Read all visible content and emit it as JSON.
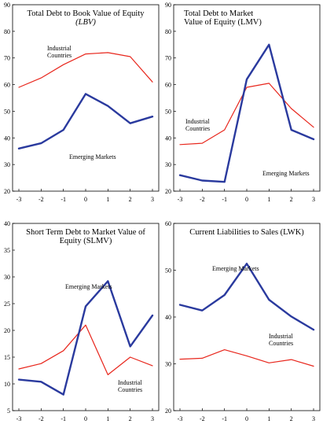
{
  "chart_data": [
    {
      "type": "line",
      "title_line1": "Total Debt to Book Value of Equity",
      "title_line2": "(LBV)",
      "title_line2_italic": true,
      "x": [
        -3,
        -2,
        -1,
        0,
        1,
        2,
        3
      ],
      "xlim": [
        -3,
        3
      ],
      "ylim": [
        20,
        90
      ],
      "yticks": [
        20,
        30,
        40,
        50,
        60,
        70,
        80,
        90
      ],
      "grid": false,
      "series": [
        {
          "name": "Industrial Countries",
          "label_lines": [
            "Industrial",
            "Countries"
          ],
          "color": "#e8261c",
          "width": 1.2,
          "values": [
            59,
            62.5,
            67.5,
            71.5,
            72,
            70.5,
            61
          ]
        },
        {
          "name": "Emerging Markets",
          "label_lines": [
            "Emerging Markets"
          ],
          "color": "#2a3a9e",
          "width": 2.4,
          "values": [
            36,
            38,
            43,
            56.5,
            52,
            45.5,
            48
          ]
        }
      ]
    },
    {
      "type": "line",
      "title_line1": "Total Debt to Market",
      "title_line2": "Value of Equity (LMV)",
      "x": [
        -3,
        -2,
        -1,
        0,
        1,
        2,
        3
      ],
      "xlim": [
        -3,
        3
      ],
      "ylim": [
        20,
        90
      ],
      "yticks": [
        20,
        30,
        40,
        50,
        60,
        70,
        80,
        90
      ],
      "grid": false,
      "series": [
        {
          "name": "Industrial Countries",
          "label_lines": [
            "Industrial",
            "Countries"
          ],
          "color": "#e8261c",
          "width": 1.2,
          "values": [
            37.5,
            38,
            43,
            59,
            60.5,
            51,
            44
          ]
        },
        {
          "name": "Emerging Markets",
          "label_lines": [
            "Emerging Markets"
          ],
          "color": "#2a3a9e",
          "width": 2.4,
          "values": [
            26,
            24,
            23.5,
            62,
            75,
            43,
            39.5
          ]
        }
      ]
    },
    {
      "type": "line",
      "title_line1": "Short Term Debt to Market Value of",
      "title_line2": "Equity (SLMV)",
      "x": [
        -3,
        -2,
        -1,
        0,
        1,
        2,
        3
      ],
      "xlim": [
        -3,
        3
      ],
      "ylim": [
        5,
        40
      ],
      "yticks": [
        5,
        10,
        15,
        20,
        25,
        30,
        35,
        40
      ],
      "grid": false,
      "series": [
        {
          "name": "Industrial Countries",
          "label_lines": [
            "Industrial",
            "Countries"
          ],
          "color": "#e8261c",
          "width": 1.2,
          "values": [
            12.8,
            13.8,
            16.2,
            21,
            11.7,
            15,
            13.4
          ]
        },
        {
          "name": "Emerging Markets",
          "label_lines": [
            "Emerging Markets"
          ],
          "color": "#2a3a9e",
          "width": 2.4,
          "values": [
            10.8,
            10.4,
            8,
            24.5,
            29.2,
            17,
            22.8
          ]
        }
      ]
    },
    {
      "type": "line",
      "title_line1": "Current Liabilities to Sales (LWK)",
      "title_line2": "",
      "x": [
        -3,
        -2,
        -1,
        0,
        1,
        2,
        3
      ],
      "xlim": [
        -3,
        3
      ],
      "ylim": [
        20,
        60
      ],
      "yticks": [
        20,
        30,
        40,
        50,
        60
      ],
      "grid": false,
      "series": [
        {
          "name": "Industrial Countries",
          "label_lines": [
            "Industrial",
            "Countries"
          ],
          "color": "#e8261c",
          "width": 1.2,
          "values": [
            31,
            31.2,
            33,
            31.7,
            30.2,
            30.9,
            29.5
          ]
        },
        {
          "name": "Emerging Markets",
          "label_lines": [
            "Emerging Markets"
          ],
          "color": "#2a3a9e",
          "width": 2.4,
          "values": [
            42.6,
            41.4,
            44.7,
            51.4,
            43.7,
            40.1,
            37.3
          ]
        }
      ]
    }
  ]
}
